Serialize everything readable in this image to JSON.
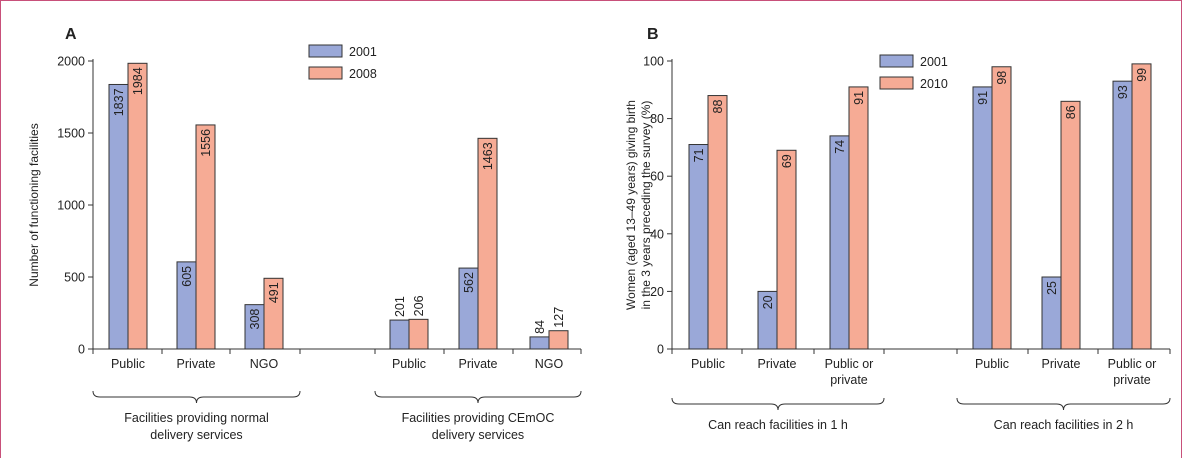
{
  "colors": {
    "series1": "#9aa8d8",
    "series2": "#f6ab95"
  },
  "chart_data": [
    {
      "type": "bar",
      "panel": "A",
      "ylabel": "Number of functioning facilities",
      "ylim": [
        0,
        2000
      ],
      "yticks": [
        0,
        500,
        1000,
        1500,
        2000
      ],
      "categories": [
        "Public",
        "Private",
        "NGO",
        "Public",
        "Private",
        "NGO"
      ],
      "groups": [
        {
          "label_lines": [
            "Facilities providing normal",
            "delivery services"
          ]
        },
        {
          "label_lines": [
            "Facilities providing CEmOC",
            "delivery services"
          ]
        }
      ],
      "series": [
        {
          "name": "2001",
          "values": [
            1837,
            605,
            308,
            201,
            562,
            84
          ]
        },
        {
          "name": "2008",
          "values": [
            1984,
            1556,
            491,
            206,
            1463,
            127
          ]
        }
      ],
      "legend": "top-center"
    },
    {
      "type": "bar",
      "panel": "B",
      "ylabel_lines": [
        "Women (aged 13–49 years) giving birth",
        "in the 3 years preceding the survey (%)"
      ],
      "ylim": [
        0,
        100
      ],
      "yticks": [
        0,
        20,
        40,
        60,
        80,
        100
      ],
      "categories": [
        [
          "Public"
        ],
        [
          "Private"
        ],
        [
          "Public or",
          "private"
        ],
        [
          "Public"
        ],
        [
          "Private"
        ],
        [
          "Public or",
          "private"
        ]
      ],
      "groups": [
        {
          "label_lines": [
            "Can reach facilities in 1 h"
          ]
        },
        {
          "label_lines": [
            "Can reach facilities in 2 h"
          ]
        }
      ],
      "series": [
        {
          "name": "2001",
          "values": [
            71,
            20,
            74,
            91,
            25,
            93
          ]
        },
        {
          "name": "2010",
          "values": [
            88,
            69,
            91,
            98,
            86,
            99
          ]
        }
      ],
      "legend": "top-left"
    }
  ]
}
